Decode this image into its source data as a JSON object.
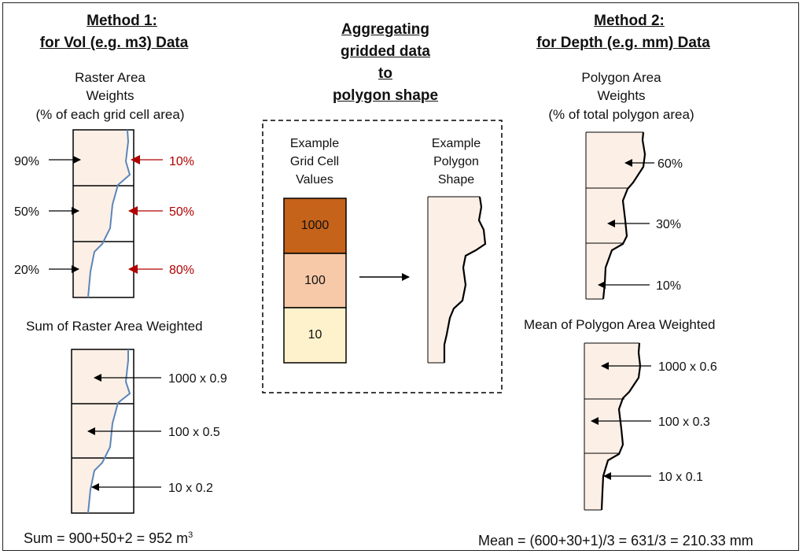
{
  "method1": {
    "title_line1": "Method 1:",
    "title_line2": "for Vol (e.g. m3) Data",
    "weights_line1": "Raster Area",
    "weights_line2": "Weights",
    "weights_line3": "(% of each grid cell area)",
    "inside_pcts": [
      "90%",
      "50%",
      "20%"
    ],
    "outside_pcts": [
      "10%",
      "50%",
      "80%"
    ],
    "sum_heading": "Sum of Raster Area Weighted",
    "products": [
      "1000 x 0.9",
      "100 x 0.5",
      "10 x 0.2"
    ],
    "result_prefix": "Sum = 900+50+2 = 952 m",
    "result_sup": "3"
  },
  "center": {
    "title_lines": [
      "Aggregating",
      "gridded data",
      "to",
      "polygon shape"
    ],
    "grid_heading": [
      "Example",
      "Grid Cell",
      "Values"
    ],
    "polygon_heading": [
      "Example",
      "Polygon",
      "Shape"
    ],
    "cell_values": [
      "1000",
      "100",
      "10"
    ]
  },
  "method2": {
    "title_line1": "Method 2:",
    "title_line2": "for Depth (e.g. mm) Data",
    "weights_line1": "Polygon Area",
    "weights_line2": "Weights",
    "weights_line3": "(% of total polygon area)",
    "pcts": [
      "60%",
      "30%",
      "10%"
    ],
    "mean_heading": "Mean of Polygon Area Weighted",
    "products": [
      "1000 x 0.6",
      "100 x 0.3",
      "10 x 0.1"
    ],
    "result": "Mean = (600+30+1)/3 = 631/3 = 210.33 mm"
  },
  "colors": {
    "polygon_fill": "#fcefe6",
    "boundary_line": "#5b86b8",
    "outside_arrow": "#b00000",
    "cell_1000": "#c5631a",
    "cell_100": "#f7c9a9",
    "cell_10": "#fef2cc"
  }
}
